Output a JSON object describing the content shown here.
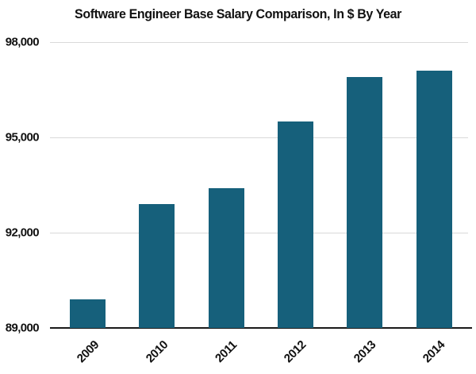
{
  "chart_data": {
    "type": "bar",
    "title": "Software Engineer Base Salary Comparison, In $ By Year",
    "categories": [
      "2009",
      "2010",
      "2011",
      "2012",
      "2013",
      "2014"
    ],
    "values": [
      89900,
      92900,
      93400,
      95500,
      96900,
      97100
    ],
    "xlabel": "",
    "ylabel": "",
    "ylim": [
      89000,
      98000
    ],
    "yticks": [
      89000,
      92000,
      95000,
      98000
    ],
    "ytick_labels": [
      "89,000",
      "92,000",
      "95,000",
      "98,000"
    ],
    "grid": true,
    "legend": false,
    "colors": {
      "bar": "#16607B",
      "gridline": "#d9d9d9",
      "axis_line": "#1a1a1a",
      "text": "#111111",
      "background": "#ffffff"
    }
  }
}
